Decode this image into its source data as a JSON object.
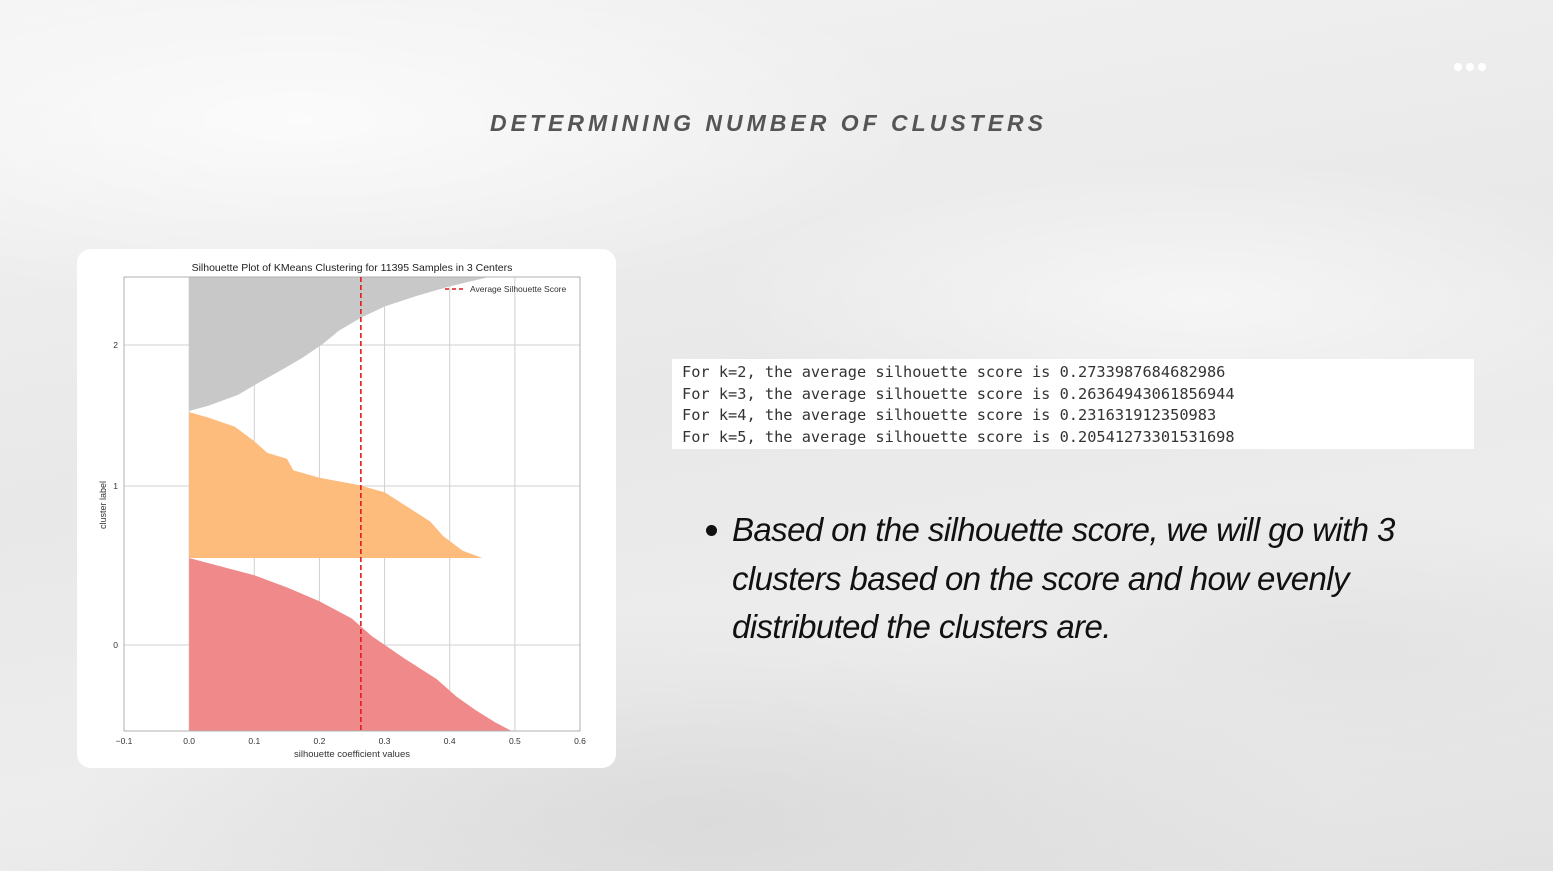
{
  "slide": {
    "title": "DETERMINING NUMBER OF CLUSTERS",
    "menu_icon": "more-dots-icon",
    "bullet_icon": "bullet-dot-icon",
    "bullet_text": "Based on the silhouette score, we will go with 3 clusters based on the score and how evenly distributed the clusters are."
  },
  "scores": {
    "lines": [
      "For k=2, the average silhouette score is 0.2733987684682986",
      "For k=3, the average silhouette score is 0.26364943061856944",
      "For k=4, the average silhouette score is 0.231631912350983",
      "For k=5, the average silhouette score is 0.20541273301531698"
    ]
  },
  "chart_data": {
    "type": "area",
    "title": "Silhouette Plot of KMeans Clustering for 11395 Samples in 3 Centers",
    "xlabel": "silhouette coefficient values",
    "ylabel": "cluster label",
    "xlim": [
      -0.1,
      0.6
    ],
    "xticks": [
      "−0.1",
      "0.0",
      "0.1",
      "0.2",
      "0.3",
      "0.4",
      "0.5",
      "0.6"
    ],
    "xtick_values": [
      -0.1,
      0.0,
      0.1,
      0.2,
      0.3,
      0.4,
      0.5,
      0.6
    ],
    "yticks": [
      "0",
      "1",
      "2"
    ],
    "grid": true,
    "legend_position": "top-right",
    "legend_label": "Average Silhouette Score",
    "average_silhouette_score": 0.2636,
    "clusters": [
      {
        "label": "0",
        "color": "#f08a8a",
        "profile": [
          [
            0.0,
            0.495
          ],
          [
            0.05,
            0.47
          ],
          [
            0.12,
            0.44
          ],
          [
            0.2,
            0.41
          ],
          [
            0.3,
            0.38
          ],
          [
            0.42,
            0.33
          ],
          [
            0.55,
            0.28
          ],
          [
            0.65,
            0.25
          ],
          [
            0.75,
            0.2
          ],
          [
            0.83,
            0.15
          ],
          [
            0.9,
            0.1
          ],
          [
            0.95,
            0.05
          ],
          [
            1.0,
            0.0
          ]
        ]
      },
      {
        "label": "1",
        "color": "#fdbb7c",
        "profile": [
          [
            0.0,
            0.45
          ],
          [
            0.05,
            0.42
          ],
          [
            0.15,
            0.39
          ],
          [
            0.25,
            0.37
          ],
          [
            0.35,
            0.335
          ],
          [
            0.45,
            0.3
          ],
          [
            0.5,
            0.26
          ],
          [
            0.55,
            0.2
          ],
          [
            0.6,
            0.16
          ],
          [
            0.68,
            0.15
          ],
          [
            0.72,
            0.12
          ],
          [
            0.8,
            0.1
          ],
          [
            0.9,
            0.07
          ],
          [
            0.96,
            0.03
          ],
          [
            1.0,
            0.0
          ]
        ]
      },
      {
        "label": "2",
        "color": "#c8c8c8",
        "profile": [
          [
            0.0,
            0.0
          ],
          [
            0.04,
            0.03
          ],
          [
            0.12,
            0.075
          ],
          [
            0.22,
            0.11
          ],
          [
            0.3,
            0.14
          ],
          [
            0.4,
            0.175
          ],
          [
            0.5,
            0.205
          ],
          [
            0.6,
            0.23
          ],
          [
            0.7,
            0.265
          ],
          [
            0.78,
            0.3
          ],
          [
            0.86,
            0.35
          ],
          [
            0.93,
            0.4
          ],
          [
            1.0,
            0.46
          ]
        ]
      }
    ]
  }
}
